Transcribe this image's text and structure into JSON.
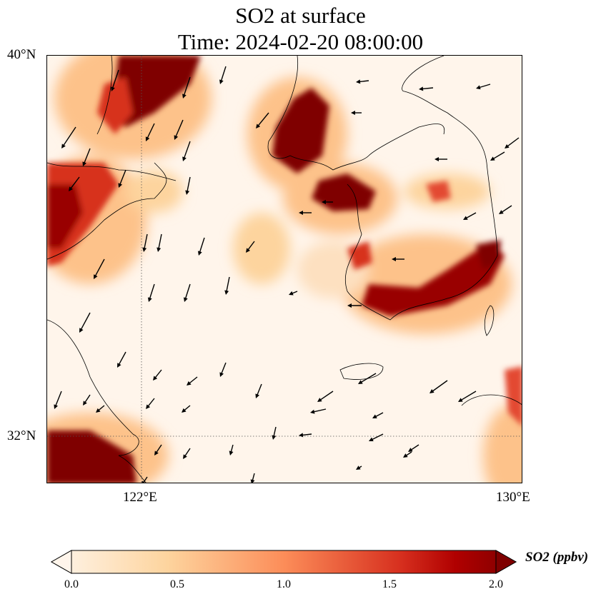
{
  "title": {
    "line1": "SO2 at surface",
    "line2": "Time: 2024-02-20 08:00:00"
  },
  "map": {
    "lat_labels": [
      "40°N",
      "32°N"
    ],
    "lon_labels": [
      "122°E",
      "130°E"
    ],
    "variable": "SO2",
    "wind_vectors": "shown"
  },
  "colorbar": {
    "label": "SO2 (ppbv)",
    "ticks": [
      "0.0",
      "0.5",
      "1.0",
      "1.5",
      "2.0"
    ],
    "range": [
      0.0,
      2.0
    ],
    "extend": "both",
    "colors": [
      "#fff5eb",
      "#fdd49e",
      "#fc8d59",
      "#d7301f",
      "#7f0000"
    ]
  }
}
